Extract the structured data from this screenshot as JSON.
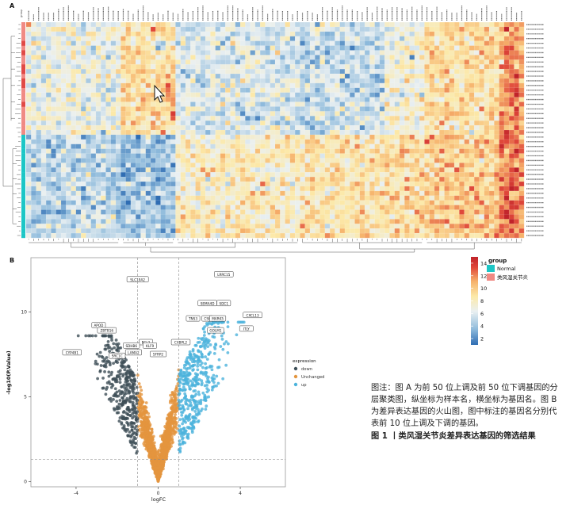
{
  "panel_a_label": "A",
  "panel_b_label": "B",
  "legend": {
    "scale_ticks": [
      14,
      12,
      10,
      8,
      6,
      4,
      2
    ],
    "group_title": "group",
    "groups": [
      {
        "name": "Normal",
        "color": "#1cc6c6"
      },
      {
        "name": "类风湿关节炎",
        "color": "#f08a84"
      }
    ],
    "scale_colors": [
      "#2f6db3",
      "#8fbbdc",
      "#eaf0f2",
      "#fce9a8",
      "#f6b26b",
      "#e0483a",
      "#c0232a"
    ]
  },
  "heatmap": {
    "top_label": "group",
    "n_cols": 100,
    "n_rows": 46,
    "n_disease": 24
  },
  "volcano": {
    "xlabel": "logFC",
    "ylabel": "-log10(P.Value)",
    "xticks": [
      -4,
      0,
      4
    ],
    "yticks": [
      0,
      5,
      10
    ],
    "xlim": [
      -6.2,
      6.2
    ],
    "ylim": [
      -0.3,
      13.2
    ],
    "threshold_logfc": 1,
    "threshold_p": 1.3,
    "legend_title": "expression",
    "legend_items": [
      {
        "label": "down",
        "color": "#3e4f58"
      },
      {
        "label": "Unchanged",
        "color": "#e3953f"
      },
      {
        "label": "up",
        "color": "#4cb3dc"
      }
    ],
    "labels": [
      {
        "text": "LRRC15",
        "x": 3.2,
        "y": 12.2
      },
      {
        "text": "SLC19A2",
        "x": -1.0,
        "y": 11.9
      },
      {
        "text": "SDC1",
        "x": 3.2,
        "y": 10.5
      },
      {
        "text": "SEMA4D",
        "x": 2.4,
        "y": 10.5
      },
      {
        "text": "CXCL13",
        "x": 4.6,
        "y": 9.8
      },
      {
        "text": "TNS3",
        "x": 1.7,
        "y": 9.6
      },
      {
        "text": "CSK",
        "x": 2.4,
        "y": 9.6
      },
      {
        "text": "MARK5",
        "x": 2.9,
        "y": 9.6
      },
      {
        "text": "APOD",
        "x": -2.9,
        "y": 9.2
      },
      {
        "text": "ZBTB16",
        "x": -2.5,
        "y": 8.9
      },
      {
        "text": "ITLY",
        "x": 4.3,
        "y": 9.0
      },
      {
        "text": "GOLM1",
        "x": 2.8,
        "y": 8.9
      },
      {
        "text": "BCL2",
        "x": -0.6,
        "y": 8.2
      },
      {
        "text": "CXBPL2",
        "x": 1.1,
        "y": 8.2
      },
      {
        "text": "SDHB6",
        "x": -1.3,
        "y": 8.0
      },
      {
        "text": "KLF9",
        "x": -0.4,
        "y": 8.0
      },
      {
        "text": "LAMA2",
        "x": -1.2,
        "y": 7.6
      },
      {
        "text": "SFRP2",
        "x": 0.0,
        "y": 7.5
      },
      {
        "text": "SRC1C",
        "x": -2.0,
        "y": 7.4
      },
      {
        "text": "CYP4B1",
        "x": -4.2,
        "y": 7.6
      }
    ]
  }
}
